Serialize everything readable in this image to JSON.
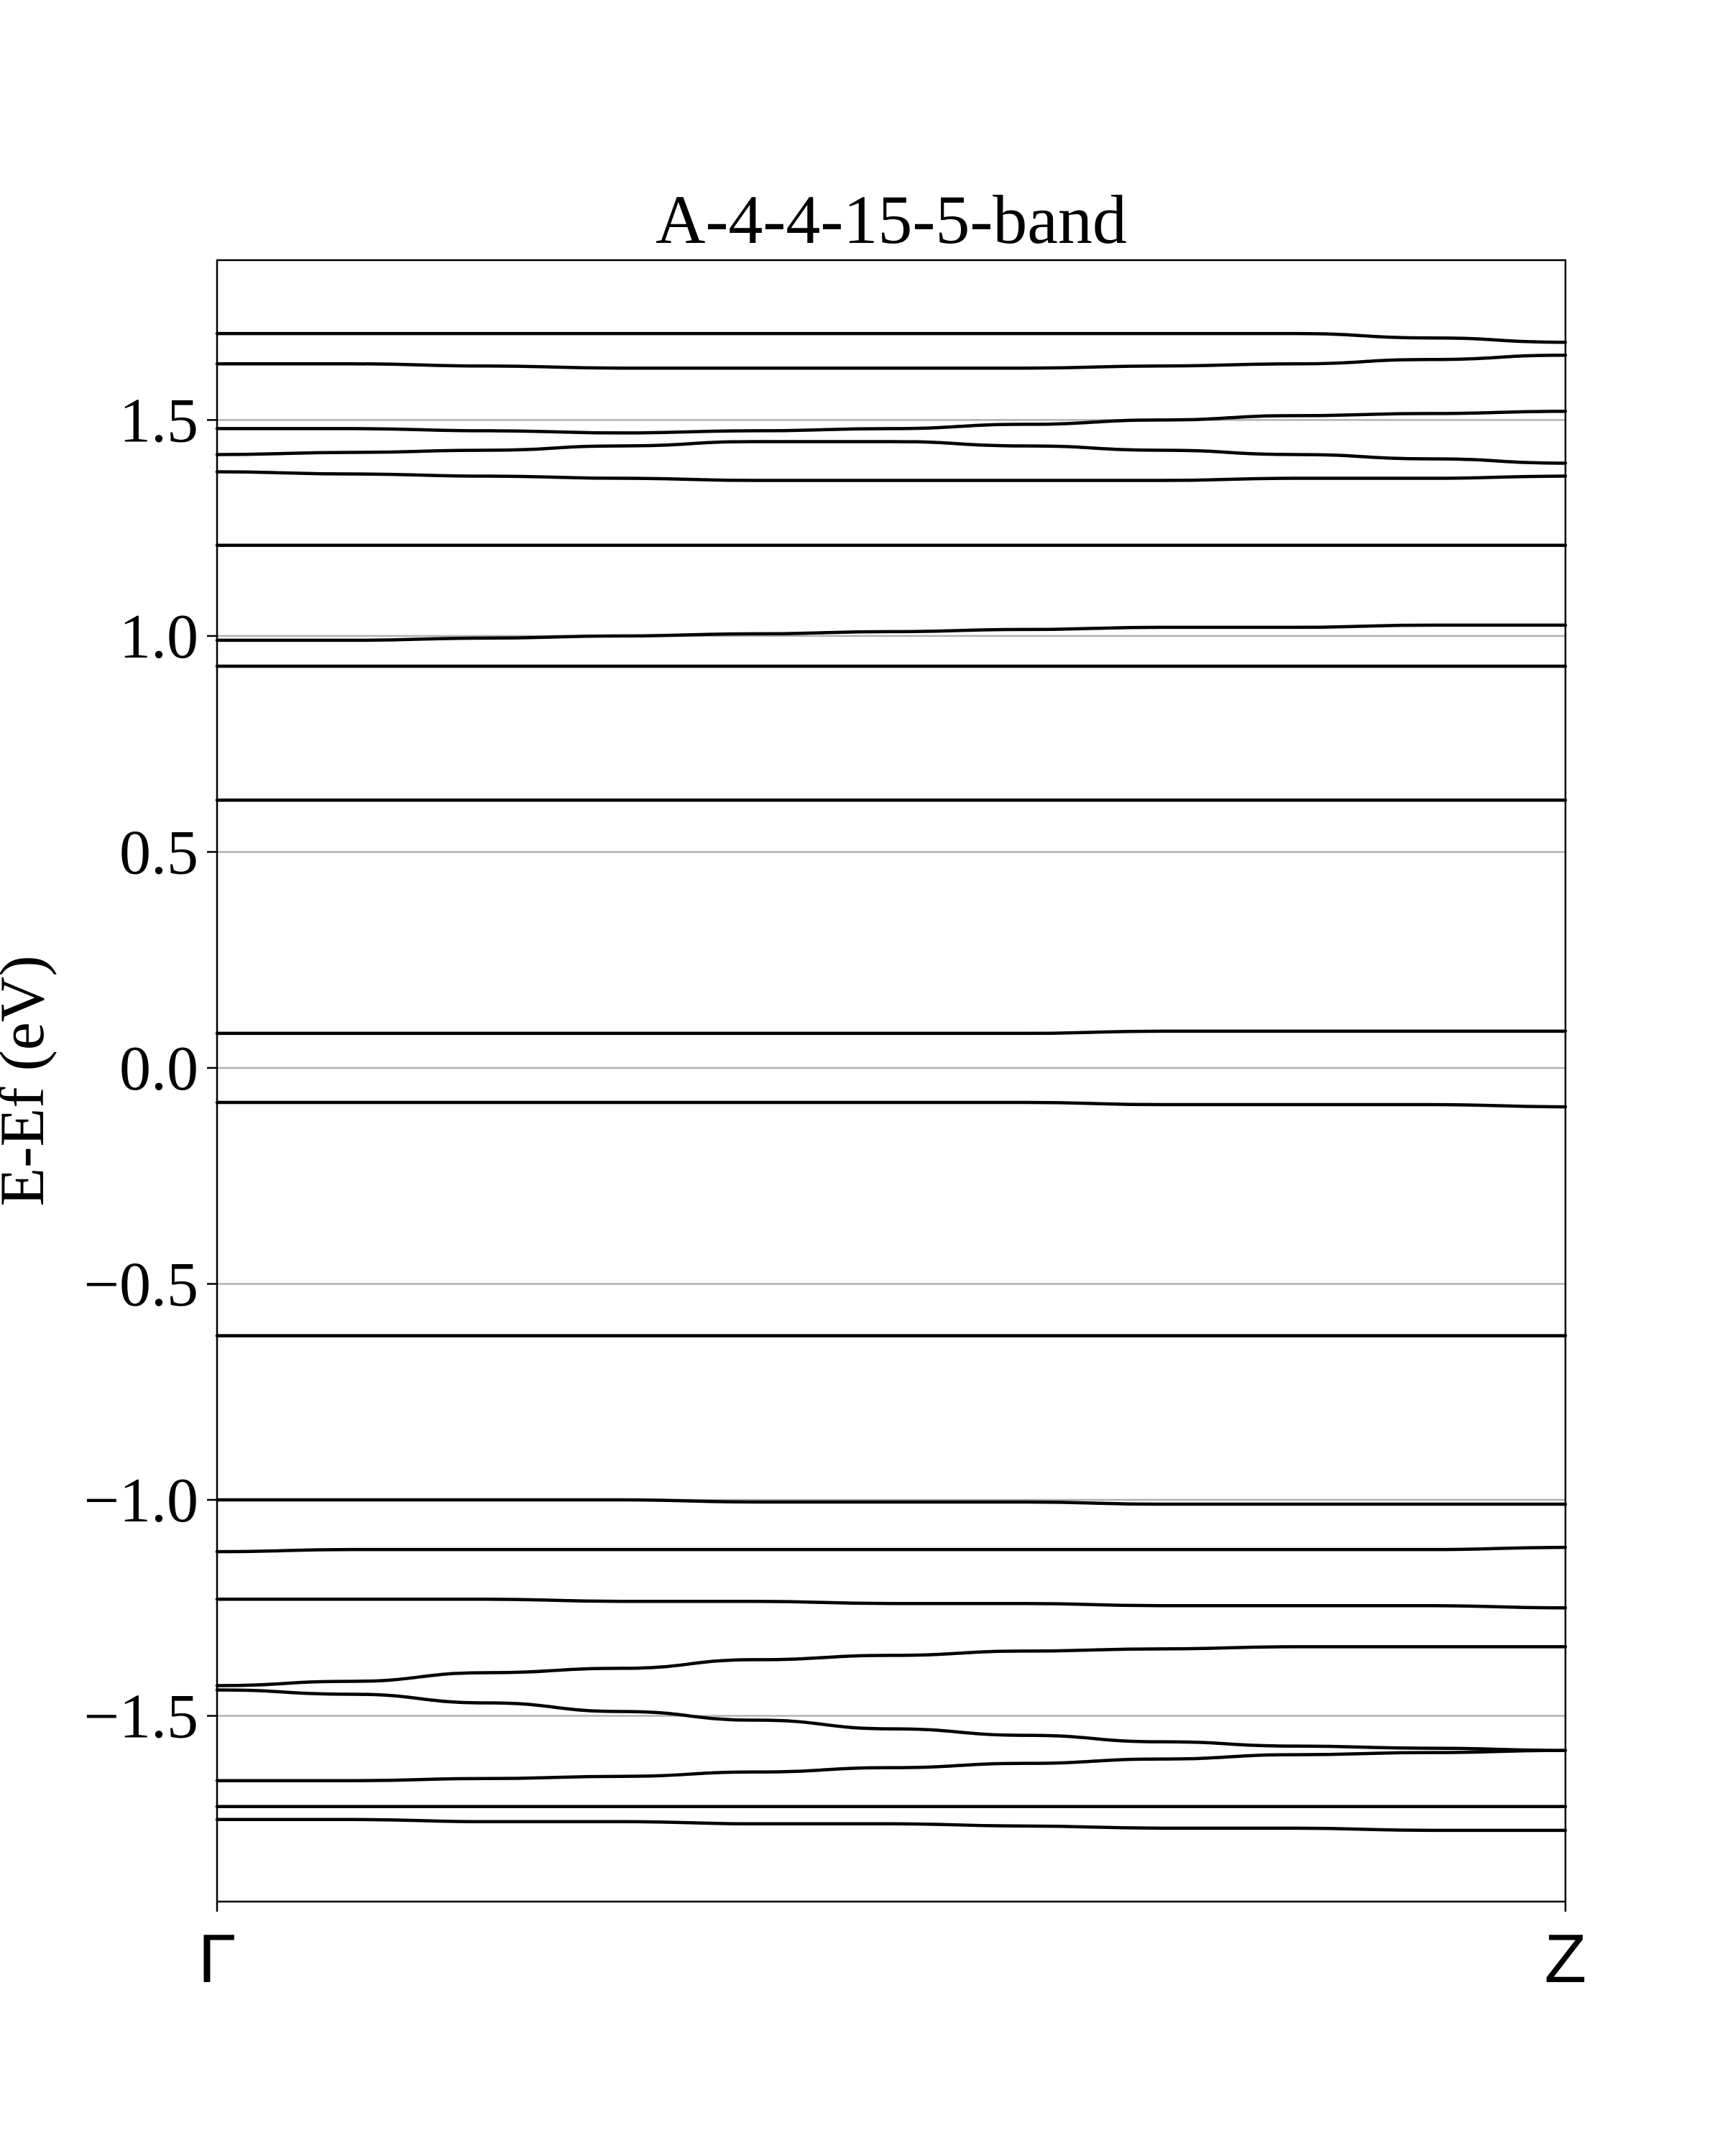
{
  "chart_data": {
    "type": "line",
    "title": "A-4-4-15-5-band",
    "ylabel": "E-Ef (eV)",
    "xlabel": "",
    "x_ticks": [
      "Γ",
      "Z"
    ],
    "y_ticks": [
      "−1.5",
      "−1.0",
      "−0.5",
      "0.0",
      "0.5",
      "1.0",
      "1.5"
    ],
    "y_tick_values": [
      -1.5,
      -1.0,
      -0.5,
      0.0,
      0.5,
      1.0,
      1.5
    ],
    "ylim": [
      -1.93,
      1.87
    ],
    "xlim": [
      0,
      1
    ],
    "grid": "horizontal",
    "line_color": "#000000",
    "grid_color": "#b0b0b0",
    "x": [
      0,
      0.1,
      0.2,
      0.3,
      0.4,
      0.5,
      0.6,
      0.7,
      0.8,
      0.9,
      1.0
    ],
    "series": [
      {
        "values": [
          1.7,
          1.7,
          1.7,
          1.7,
          1.7,
          1.7,
          1.7,
          1.7,
          1.7,
          1.69,
          1.68
        ]
      },
      {
        "values": [
          1.63,
          1.63,
          1.625,
          1.62,
          1.62,
          1.62,
          1.62,
          1.625,
          1.63,
          1.64,
          1.65
        ]
      },
      {
        "values": [
          1.48,
          1.48,
          1.475,
          1.47,
          1.475,
          1.48,
          1.49,
          1.5,
          1.51,
          1.515,
          1.52
        ]
      },
      {
        "values": [
          1.42,
          1.425,
          1.43,
          1.44,
          1.45,
          1.45,
          1.44,
          1.43,
          1.42,
          1.41,
          1.4
        ]
      },
      {
        "values": [
          1.38,
          1.375,
          1.37,
          1.365,
          1.36,
          1.36,
          1.36,
          1.36,
          1.365,
          1.365,
          1.37
        ]
      },
      {
        "values": [
          1.21,
          1.21,
          1.21,
          1.21,
          1.21,
          1.21,
          1.21,
          1.21,
          1.21,
          1.21,
          1.21
        ]
      },
      {
        "values": [
          0.99,
          0.99,
          0.995,
          1.0,
          1.005,
          1.01,
          1.015,
          1.02,
          1.02,
          1.025,
          1.025
        ]
      },
      {
        "values": [
          0.93,
          0.93,
          0.93,
          0.93,
          0.93,
          0.93,
          0.93,
          0.93,
          0.93,
          0.93,
          0.93
        ]
      },
      {
        "values": [
          0.62,
          0.62,
          0.62,
          0.62,
          0.62,
          0.62,
          0.62,
          0.62,
          0.62,
          0.62,
          0.62
        ]
      },
      {
        "values": [
          0.08,
          0.08,
          0.08,
          0.08,
          0.08,
          0.08,
          0.08,
          0.085,
          0.085,
          0.085,
          0.085
        ]
      },
      {
        "values": [
          -0.08,
          -0.08,
          -0.08,
          -0.08,
          -0.08,
          -0.08,
          -0.08,
          -0.085,
          -0.085,
          -0.085,
          -0.09
        ]
      },
      {
        "values": [
          -0.62,
          -0.62,
          -0.62,
          -0.62,
          -0.62,
          -0.62,
          -0.62,
          -0.62,
          -0.62,
          -0.62,
          -0.62
        ]
      },
      {
        "values": [
          -1.0,
          -1.0,
          -1.0,
          -1.0,
          -1.005,
          -1.005,
          -1.005,
          -1.01,
          -1.01,
          -1.01,
          -1.01
        ]
      },
      {
        "values": [
          -1.12,
          -1.115,
          -1.115,
          -1.115,
          -1.115,
          -1.115,
          -1.115,
          -1.115,
          -1.115,
          -1.115,
          -1.11
        ]
      },
      {
        "values": [
          -1.23,
          -1.23,
          -1.23,
          -1.235,
          -1.235,
          -1.24,
          -1.24,
          -1.245,
          -1.245,
          -1.245,
          -1.25
        ]
      },
      {
        "values": [
          -1.43,
          -1.42,
          -1.4,
          -1.39,
          -1.37,
          -1.36,
          -1.35,
          -1.345,
          -1.34,
          -1.34,
          -1.34
        ]
      },
      {
        "values": [
          -1.44,
          -1.45,
          -1.47,
          -1.49,
          -1.51,
          -1.53,
          -1.545,
          -1.56,
          -1.57,
          -1.575,
          -1.58
        ]
      },
      {
        "values": [
          -1.65,
          -1.65,
          -1.645,
          -1.64,
          -1.63,
          -1.62,
          -1.61,
          -1.6,
          -1.59,
          -1.585,
          -1.58
        ]
      },
      {
        "values": [
          -1.71,
          -1.71,
          -1.71,
          -1.71,
          -1.71,
          -1.71,
          -1.71,
          -1.71,
          -1.71,
          -1.71,
          -1.71
        ]
      },
      {
        "values": [
          -1.74,
          -1.74,
          -1.745,
          -1.745,
          -1.75,
          -1.75,
          -1.755,
          -1.76,
          -1.76,
          -1.765,
          -1.765
        ]
      }
    ]
  }
}
